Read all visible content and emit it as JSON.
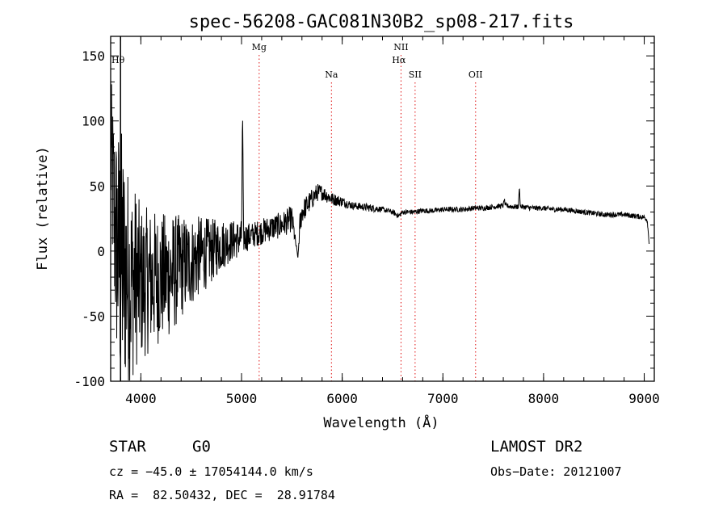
{
  "chart_data": {
    "type": "line",
    "title": "spec-56208-GAC081N30B2_sp08-217.fits",
    "xlabel": "Wavelength (Å)",
    "ylabel": "Flux (relative)",
    "xlim": [
      3700,
      9100
    ],
    "ylim": [
      -100,
      165
    ],
    "x_ticks": [
      4000,
      5000,
      6000,
      7000,
      8000,
      9000
    ],
    "y_ticks": [
      -100,
      -50,
      0,
      50,
      100,
      150
    ],
    "spectral_lines": [
      {
        "label": "Hθ",
        "wavelength": 3798
      },
      {
        "label": "Mg",
        "wavelength": 5175
      },
      {
        "label": "Na",
        "wavelength": 5893
      },
      {
        "label": "NII",
        "wavelength": 6584
      },
      {
        "label": "Hα",
        "wavelength": 6563
      },
      {
        "label": "SII",
        "wavelength": 6724
      },
      {
        "label": "OII",
        "wavelength": 7325
      }
    ],
    "spectrum": {
      "name": "flux",
      "x": [
        3700,
        3750,
        3800,
        3850,
        3900,
        3950,
        4000,
        4100,
        4200,
        4300,
        4400,
        4500,
        4600,
        4700,
        4800,
        4900,
        5000,
        5010,
        5020,
        5100,
        5200,
        5300,
        5400,
        5500,
        5560,
        5580,
        5600,
        5700,
        5750,
        5800,
        5900,
        6000,
        6100,
        6200,
        6300,
        6400,
        6500,
        6560,
        6600,
        6700,
        6800,
        6900,
        7000,
        7100,
        7200,
        7300,
        7400,
        7500,
        7600,
        7610,
        7620,
        7700,
        7750,
        7760,
        7770,
        7800,
        7900,
        8000,
        8100,
        8200,
        8300,
        8400,
        8500,
        8600,
        8700,
        8800,
        8900,
        9000,
        9030,
        9050
      ],
      "mean": [
        75,
        10,
        -10,
        -15,
        -25,
        -20,
        -25,
        -22,
        -20,
        -18,
        -12,
        -8,
        -3,
        0,
        5,
        8,
        10,
        110,
        10,
        12,
        15,
        18,
        20,
        25,
        -5,
        20,
        30,
        40,
        45,
        45,
        40,
        38,
        35,
        34,
        33,
        32,
        30,
        27,
        30,
        30,
        31,
        31,
        32,
        32,
        32,
        33,
        33,
        34,
        35,
        40,
        35,
        34,
        34,
        50,
        34,
        34,
        33,
        33,
        32,
        32,
        31,
        30,
        29,
        28,
        28,
        28,
        27,
        26,
        24,
        5
      ],
      "amp": [
        60,
        90,
        110,
        90,
        80,
        70,
        60,
        55,
        50,
        48,
        40,
        35,
        30,
        25,
        20,
        16,
        14,
        0,
        12,
        10,
        10,
        10,
        10,
        10,
        0,
        10,
        9,
        8,
        7,
        6,
        5,
        4,
        3,
        3,
        3,
        2,
        2,
        2,
        2,
        2,
        2,
        2,
        2,
        2,
        2,
        2,
        2,
        2,
        2,
        1,
        2,
        2,
        2,
        1,
        2,
        2,
        2,
        2,
        2,
        2,
        2,
        2,
        2,
        2,
        2,
        2,
        2,
        2,
        2,
        1
      ]
    }
  },
  "footer": {
    "object_class": "STAR",
    "subclass": "G0",
    "survey": "LAMOST DR2",
    "cz": "cz = −45.0 ± 17054144.0 km/s",
    "obs_date": "Obs−Date: 20121007",
    "coords": "RA =  82.50432, DEC =  28.91784"
  }
}
